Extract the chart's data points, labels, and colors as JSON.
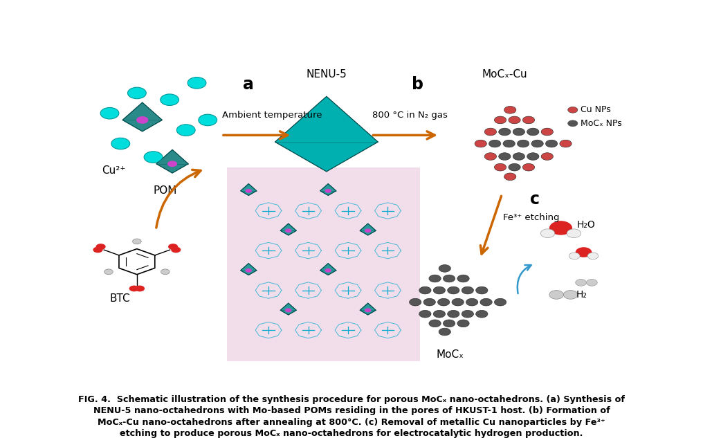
{
  "figure_width": 10.16,
  "figure_height": 6.33,
  "dpi": 100,
  "bg_color": "#ffffff",
  "caption_line1": "FIG. 4.  Schematic illustration of the synthesis procedure for porous MoCₓ nano-octahedrons. (a) Synthesis of",
  "caption_line2": "NENU-5 nano-octahedrons with Mo-based POMs residing in the pores of HKUST-1 host. (b) Formation of",
  "caption_line3": "MoCₓ-Cu nano-octahedrons after annealing at 800°C. (c) Removal of metallic Cu nanoparticles by Fe³⁺",
  "caption_line4": "etching to produce porous MoCₓ nano-octahedrons for electrocatalytic hydrogen production.",
  "label_a": "a",
  "label_b": "b",
  "label_c": "c",
  "nenu5_label": "NENU-5",
  "mocxcu_label": "MoCₓ-Cu",
  "mocx_label": "MoCₓ",
  "cu2plus_label": "Cu²⁺",
  "pom_label": "POM",
  "btc_label": "BTC",
  "h2o_label": "H₂O",
  "h2_label": "H₂",
  "arrow_color_orange": "#cc6600",
  "arrow_color_blue": "#3399cc",
  "teal_color": "#00b0b0",
  "cu_np_color": "#cc4444",
  "mocx_np_color": "#555555",
  "ambient_temp_text": "Ambient temperature",
  "heat_text": "800 °C in N₂ gas",
  "fe_etch_text": "Fe³⁺ etching",
  "cu_np_legend": "Cu NPs",
  "mocx_np_legend": "MoCₓ NPs"
}
